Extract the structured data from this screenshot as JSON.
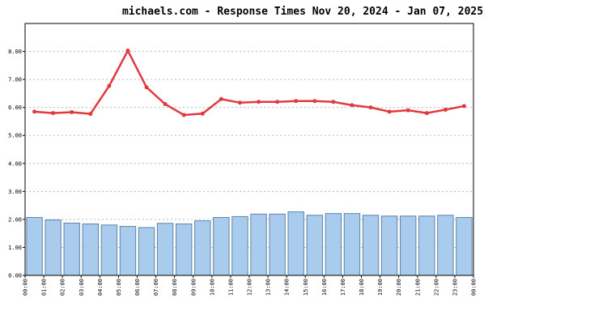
{
  "chart_data": {
    "type": "bar_line",
    "title": "michaels.com - Response Times Nov 20, 2024 - Jan 07, 2025",
    "categories": [
      "00:00",
      "01:00",
      "02:00",
      "03:00",
      "04:00",
      "05:00",
      "06:00",
      "07:00",
      "08:00",
      "09:00",
      "10:00",
      "11:00",
      "12:00",
      "13:00",
      "14:00",
      "15:00",
      "16:00",
      "17:00",
      "18:00",
      "19:00",
      "20:00",
      "21:00",
      "22:00",
      "23:00"
    ],
    "x_labels": [
      "00:00",
      "01:00",
      "02:00",
      "03:00",
      "04:00",
      "05:00",
      "06:00",
      "07:00",
      "08:00",
      "09:00",
      "10:00",
      "11:00",
      "12:00",
      "13:00",
      "14:00",
      "15:00",
      "16:00",
      "17:00",
      "18:00",
      "19:00",
      "20:00",
      "21:00",
      "22:00",
      "23:00",
      "00:00"
    ],
    "series": [
      {
        "type": "bar",
        "color": "#a8cbee",
        "values": [
          2.07,
          1.98,
          1.87,
          1.84,
          1.8,
          1.75,
          1.71,
          1.86,
          1.84,
          1.95,
          2.07,
          2.1,
          2.19,
          2.19,
          2.27,
          2.15,
          2.21,
          2.21,
          2.15,
          2.12,
          2.12,
          2.12,
          2.15,
          2.07
        ]
      },
      {
        "type": "line",
        "color": "#e03a3e",
        "values": [
          5.85,
          5.8,
          5.83,
          5.77,
          6.77,
          8.03,
          6.72,
          6.12,
          5.73,
          5.78,
          6.3,
          6.17,
          6.2,
          6.2,
          6.23,
          6.23,
          6.2,
          6.08,
          6.0,
          5.85,
          5.9,
          5.8,
          5.92,
          6.05
        ]
      }
    ],
    "ylim": [
      0,
      9
    ],
    "yticks": [
      {
        "value": 0,
        "label": "0.00"
      },
      {
        "value": 1,
        "label": "1.00"
      },
      {
        "value": 2,
        "label": "2.00"
      },
      {
        "value": 3,
        "label": "3.00"
      },
      {
        "value": 4,
        "label": "4.00"
      },
      {
        "value": 5,
        "label": "5.00"
      },
      {
        "value": 6,
        "label": "6.00"
      },
      {
        "value": 7,
        "label": "7.00"
      },
      {
        "value": 8,
        "label": "8.00"
      }
    ],
    "grid": true
  }
}
